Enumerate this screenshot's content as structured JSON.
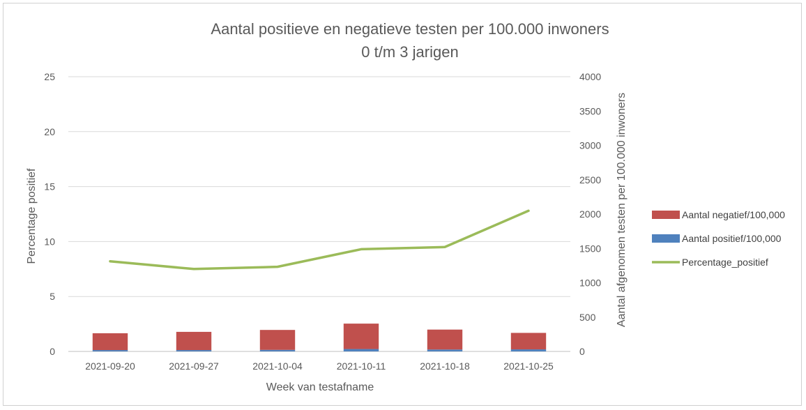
{
  "chart_data": {
    "type": "bar",
    "title": "Aantal positieve en negatieve testen per 100.000 inwoners",
    "subtitle": "0 t/m 3 jarigen",
    "xlabel": "Week van testafname",
    "ylabel_left": "Percentage positief",
    "ylabel_right": "Aantal afgenomen testen per 100.000 inwoners",
    "categories": [
      "2021-09-20",
      "2021-09-27",
      "2021-10-04",
      "2021-10-11",
      "2021-10-18",
      "2021-10-25"
    ],
    "ylim_left": [
      0,
      25
    ],
    "yticks_left": [
      "0",
      "5",
      "10",
      "15",
      "20",
      "25"
    ],
    "ylim_right": [
      0,
      4000
    ],
    "yticks_right": [
      "0",
      "500",
      "1000",
      "1500",
      "2000",
      "2500",
      "3000",
      "3500",
      "4000"
    ],
    "grid": true,
    "legend_position": "right",
    "series": [
      {
        "name": "Aantal negatief/100,000",
        "kind": "stacked-bar",
        "axis": "right",
        "color": "#c0504d",
        "values": [
          245,
          265,
          290,
          370,
          290,
          240
        ]
      },
      {
        "name": "Aantal positief/100,000",
        "kind": "stacked-bar",
        "axis": "right",
        "color": "#4f81bd",
        "values": [
          20,
          20,
          23,
          35,
          28,
          30
        ]
      },
      {
        "name": "Percentage_positief",
        "kind": "line",
        "axis": "left",
        "color": "#9bbb59",
        "values": [
          8.2,
          7.5,
          7.7,
          9.3,
          9.5,
          12.8
        ]
      }
    ]
  }
}
